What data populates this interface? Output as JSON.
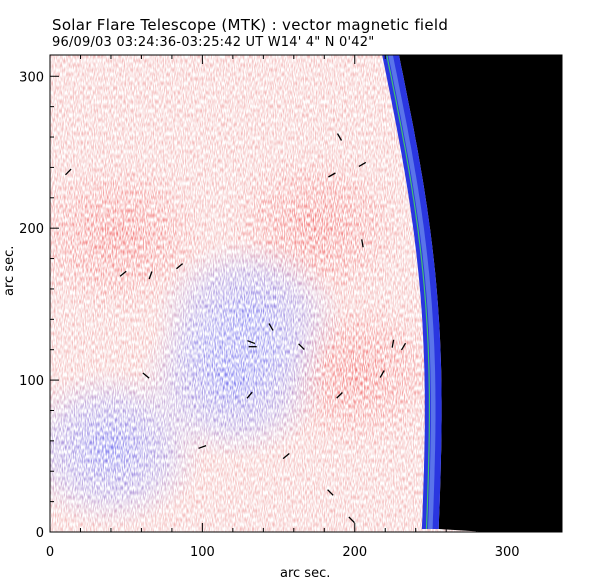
{
  "chart_data": {
    "type": "vector magnetic field map",
    "title": "Solar Flare Telescope (MTK) : vector magnetic field",
    "subtitle": "96/09/03  03:24:36-03:25:42 UT    W14' 4\"   N 0'42\"",
    "xlabel": "arc sec.",
    "ylabel": "arc sec.",
    "xlim": [
      0,
      336
    ],
    "ylim": [
      0,
      314
    ],
    "xticks": [
      0,
      100,
      200,
      300
    ],
    "yticks": [
      0,
      100,
      200,
      300
    ],
    "xtick_labels": [
      "0",
      "100",
      "200",
      "300"
    ],
    "ytick_labels": [
      "0",
      "100",
      "200",
      "300"
    ],
    "limb_x_at_top": 222,
    "limb_x_at_bottom": 248,
    "colors": {
      "positive_polarity": "#f07878",
      "negative_polarity": "#7878f0",
      "limb_band": "#2a36e0",
      "limb_contour": "#40c070",
      "off_disk": "#000000",
      "vectors": "#000000"
    },
    "regions": [
      {
        "polarity": "positive",
        "x": 45,
        "y": 195
      },
      {
        "polarity": "positive",
        "x": 175,
        "y": 200
      },
      {
        "polarity": "positive",
        "x": 200,
        "y": 105
      },
      {
        "polarity": "negative",
        "x": 130,
        "y": 140
      },
      {
        "polarity": "negative",
        "x": 40,
        "y": 55
      },
      {
        "polarity": "negative",
        "x": 120,
        "y": 100
      }
    ],
    "transverse_vectors": [
      {
        "x": 12,
        "y": 237,
        "angle": 45
      },
      {
        "x": 48,
        "y": 170,
        "angle": 40
      },
      {
        "x": 66,
        "y": 169,
        "angle": 70
      },
      {
        "x": 85,
        "y": 175,
        "angle": 40
      },
      {
        "x": 63,
        "y": 103,
        "angle": 140
      },
      {
        "x": 133,
        "y": 122,
        "angle": 0
      },
      {
        "x": 132,
        "y": 125,
        "angle": 160
      },
      {
        "x": 145,
        "y": 135,
        "angle": 120
      },
      {
        "x": 131,
        "y": 90,
        "angle": 50
      },
      {
        "x": 100,
        "y": 56,
        "angle": 20
      },
      {
        "x": 155,
        "y": 50,
        "angle": 40
      },
      {
        "x": 165,
        "y": 122,
        "angle": 135
      },
      {
        "x": 190,
        "y": 90,
        "angle": 45
      },
      {
        "x": 218,
        "y": 104,
        "angle": 60
      },
      {
        "x": 184,
        "y": 26,
        "angle": 135
      },
      {
        "x": 198,
        "y": 8,
        "angle": 135
      },
      {
        "x": 190,
        "y": 260,
        "angle": 120
      },
      {
        "x": 185,
        "y": 235,
        "angle": 30
      },
      {
        "x": 205,
        "y": 242,
        "angle": 30
      },
      {
        "x": 205,
        "y": 190,
        "angle": 100
      },
      {
        "x": 225,
        "y": 124,
        "angle": 80
      },
      {
        "x": 232,
        "y": 122,
        "angle": 60
      }
    ]
  }
}
